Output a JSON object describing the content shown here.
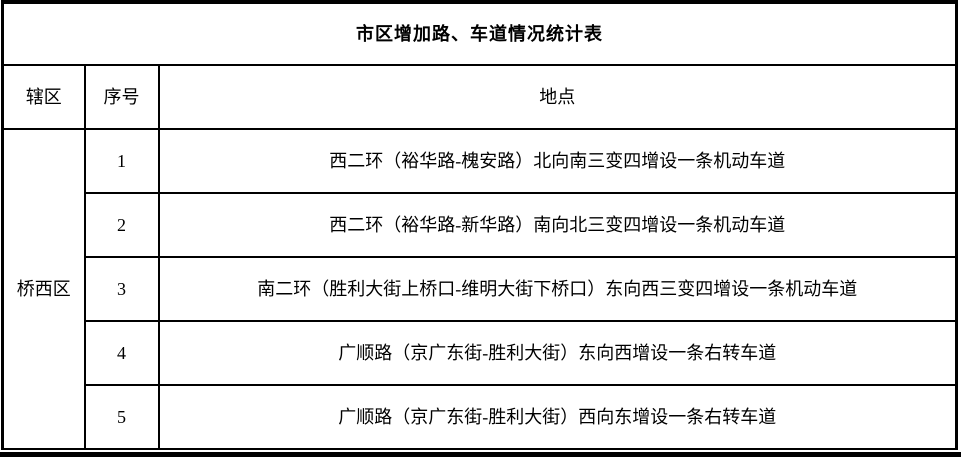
{
  "table": {
    "title": "市区增加路、车道情况统计表",
    "headers": {
      "district": "辖区",
      "index": "序号",
      "location": "地点"
    },
    "district": "桥西区",
    "rows": [
      {
        "no": "1",
        "location": "西二环（裕华路-槐安路）北向南三变四增设一条机动车道"
      },
      {
        "no": "2",
        "location": "西二环（裕华路-新华路）南向北三变四增设一条机动车道"
      },
      {
        "no": "3",
        "location": "南二环（胜利大街上桥口-维明大街下桥口）东向西三变四增设一条机动车道"
      },
      {
        "no": "4",
        "location": "广顺路（京广东街-胜利大街）东向西增设一条右转车道"
      },
      {
        "no": "5",
        "location": "广顺路（京广东街-胜利大街）西向东增设一条右转车道"
      }
    ]
  }
}
